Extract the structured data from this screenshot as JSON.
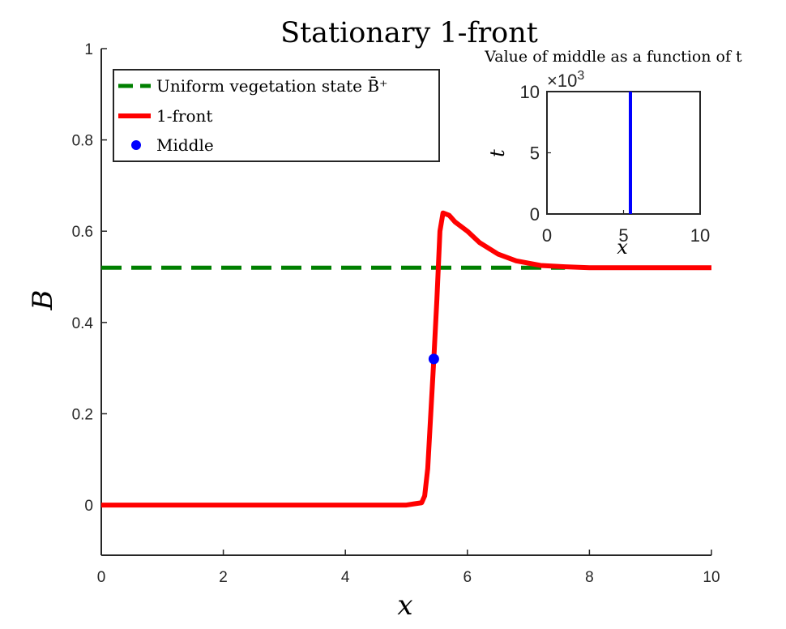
{
  "chart_data": [
    {
      "type": "line",
      "title": "Stationary 1-front",
      "xlabel": "x",
      "ylabel": "B",
      "xlim": [
        0,
        10
      ],
      "ylim": [
        -0.11,
        1
      ],
      "xticks": [
        "0",
        "2",
        "4",
        "6",
        "8",
        "10"
      ],
      "yticks": [
        "0",
        "0.2",
        "0.4",
        "0.6",
        "0.8",
        "1"
      ],
      "grid": false,
      "legend_position": "top-left",
      "legend": [
        {
          "label": "Uniform vegetation state B̄⁺",
          "series": "uniform"
        },
        {
          "label": "1-front",
          "series": "front"
        },
        {
          "label": "Middle",
          "series": "middle"
        }
      ],
      "series": [
        {
          "key": "uniform",
          "style": "dashed",
          "color": "#008000",
          "x": [
            0,
            7.6
          ],
          "y": [
            0.52,
            0.52
          ]
        },
        {
          "key": "front",
          "style": "solid",
          "color": "#ff0000",
          "x": [
            0,
            5.0,
            5.25,
            5.3,
            5.35,
            5.4,
            5.45,
            5.5,
            5.55,
            5.6,
            5.7,
            5.8,
            6.0,
            6.2,
            6.5,
            6.8,
            7.2,
            7.6,
            8.0,
            9.0,
            10.0
          ],
          "y": [
            0,
            0,
            0.005,
            0.02,
            0.08,
            0.2,
            0.32,
            0.45,
            0.6,
            0.64,
            0.635,
            0.62,
            0.6,
            0.575,
            0.55,
            0.535,
            0.525,
            0.522,
            0.52,
            0.52,
            0.52
          ]
        },
        {
          "key": "middle",
          "style": "marker",
          "color": "#0000ff",
          "x": [
            5.45
          ],
          "y": [
            0.32
          ]
        }
      ]
    },
    {
      "type": "line",
      "title": "Value of middle as a function of t",
      "xlabel": "x",
      "ylabel": "t",
      "xlim": [
        0,
        10
      ],
      "ylim": [
        0,
        10000
      ],
      "xticks": [
        "0",
        "5",
        "10"
      ],
      "yticks": [
        "0",
        "5",
        "10"
      ],
      "y_multiplier": "×10",
      "y_multiplier_exp": "3",
      "series": [
        {
          "key": "middle-trace",
          "color": "#0000ff",
          "x": [
            5.45,
            5.45
          ],
          "y": [
            0,
            10000
          ]
        }
      ]
    }
  ]
}
